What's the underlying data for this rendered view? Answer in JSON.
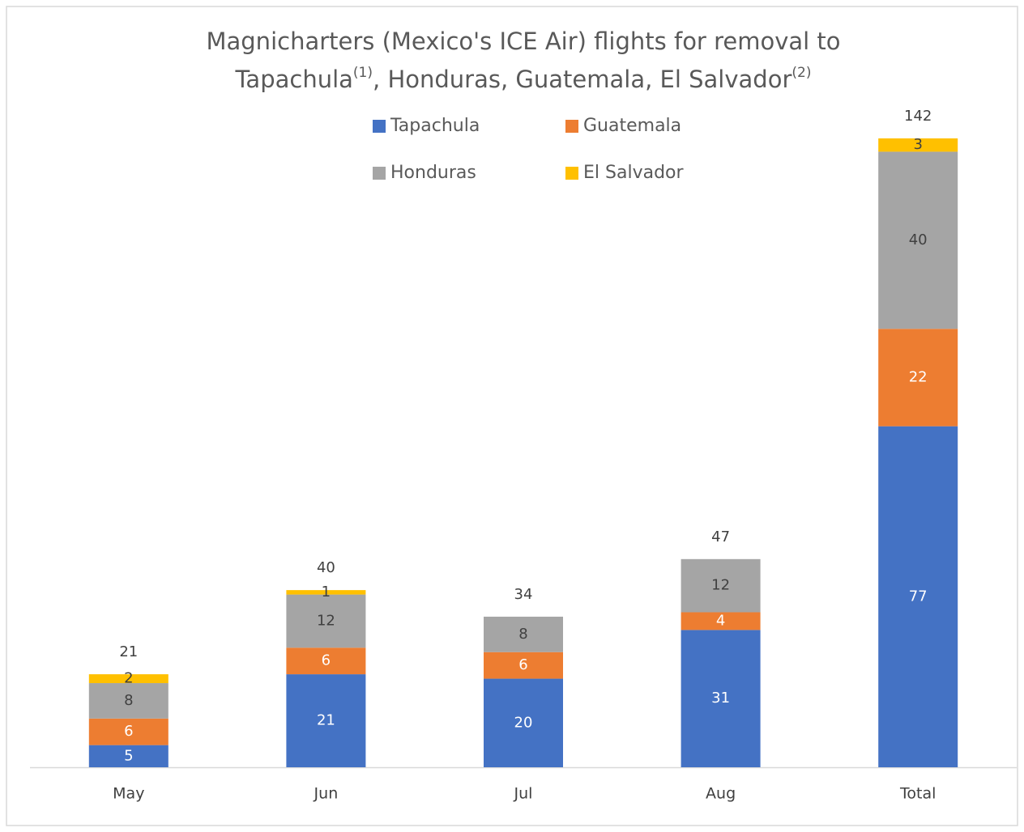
{
  "chart_data": {
    "type": "stacked_bar",
    "title_parts": [
      "Magnicharters (Mexico's ICE Air) flights for removal to",
      "Tapachula",
      "(1)",
      ", Honduras, Guatemala, El Salvador",
      "(2)"
    ],
    "categories": [
      "May",
      "Jun",
      "Jul",
      "Aug",
      "Total"
    ],
    "series": [
      {
        "name": "Tapachula",
        "color": "#4472c4",
        "values": [
          5,
          21,
          20,
          31,
          77
        ]
      },
      {
        "name": "Guatemala",
        "color": "#ed7d31",
        "values": [
          6,
          6,
          6,
          4,
          22
        ]
      },
      {
        "name": "Honduras",
        "color": "#a5a5a5",
        "values": [
          8,
          12,
          8,
          12,
          40
        ]
      },
      {
        "name": "El Salvador",
        "color": "#ffc000",
        "values": [
          2,
          1,
          null,
          null,
          3
        ]
      }
    ],
    "totals": [
      21,
      40,
      34,
      47,
      142
    ]
  }
}
